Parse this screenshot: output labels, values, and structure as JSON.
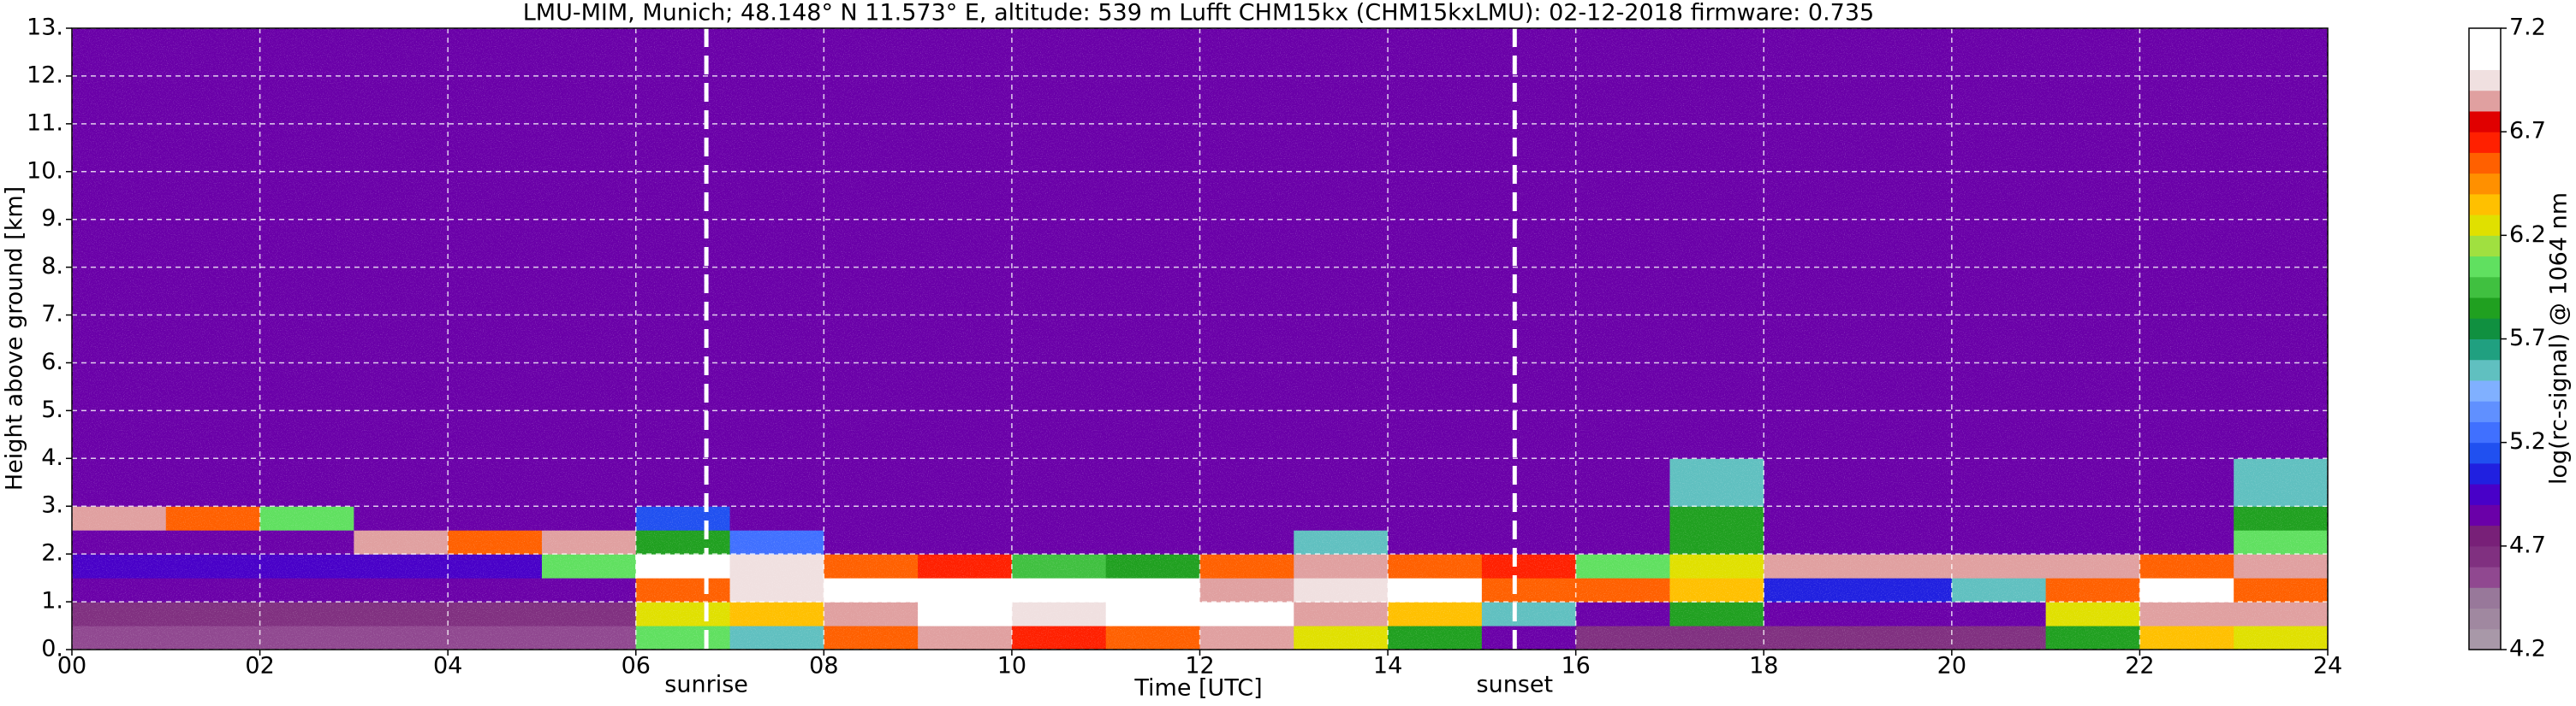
{
  "chart_data": {
    "type": "heatmap",
    "title": "LMU-MIM, Munich; 48.148° N 11.573° E, altitude: 539 m    Lufft CHM15kx (CHM15kxLMU): 02-12-2018    firmware: 0.735",
    "x_label": "Time [UTC]",
    "y_label": "Height above ground [km]",
    "colorbar_label": "log(rc-signal) @ 1064 nm",
    "xbins": [
      0,
      1,
      2,
      3,
      4,
      5,
      6,
      7,
      8,
      9,
      10,
      11,
      12,
      13,
      14,
      15,
      16,
      17,
      18,
      19,
      20,
      21,
      22,
      23,
      24
    ],
    "ybins": [
      0,
      0.5,
      1,
      1.5,
      2,
      2.5,
      3,
      4,
      13
    ],
    "z": [
      [
        4.5,
        4.5,
        4.5,
        4.5,
        4.5,
        4.5,
        6.0,
        5.5,
        6.5,
        6.8,
        6.6,
        6.5,
        6.8,
        6.2,
        5.8,
        4.8,
        4.6,
        4.6,
        4.6,
        4.6,
        4.6,
        5.8,
        6.3,
        6.2
      ],
      [
        4.6,
        4.6,
        4.6,
        4.6,
        4.6,
        4.6,
        6.2,
        6.3,
        6.8,
        7.0,
        6.9,
        7.0,
        7.0,
        6.8,
        6.3,
        5.5,
        4.8,
        5.8,
        4.8,
        4.8,
        4.8,
        6.2,
        6.8,
        6.8
      ],
      [
        4.8,
        4.8,
        4.8,
        4.8,
        4.8,
        4.8,
        6.5,
        6.9,
        7.0,
        7.1,
        7.1,
        7.1,
        6.8,
        6.9,
        7.0,
        6.5,
        6.5,
        6.3,
        5.0,
        5.0,
        5.5,
        6.5,
        7.0,
        6.5
      ],
      [
        4.9,
        4.9,
        4.9,
        4.9,
        4.9,
        6.0,
        7.0,
        6.9,
        6.5,
        6.6,
        5.9,
        5.8,
        6.5,
        6.8,
        6.5,
        6.6,
        6.0,
        6.2,
        6.8,
        6.8,
        6.8,
        6.8,
        6.5,
        6.8
      ],
      [
        4.8,
        4.8,
        4.8,
        6.8,
        6.5,
        6.8,
        5.8,
        5.2,
        4.8,
        4.8,
        4.8,
        4.8,
        4.8,
        5.5,
        4.8,
        4.8,
        4.8,
        5.8,
        4.8,
        4.8,
        4.8,
        4.8,
        4.8,
        6.0
      ],
      [
        6.8,
        6.5,
        6.0,
        4.8,
        4.8,
        4.8,
        5.1,
        4.8,
        4.8,
        4.8,
        4.8,
        4.8,
        4.8,
        4.8,
        4.8,
        4.8,
        4.8,
        5.8,
        4.8,
        4.8,
        4.8,
        4.8,
        4.8,
        5.8
      ],
      [
        4.8,
        4.8,
        4.8,
        4.8,
        4.8,
        4.8,
        4.8,
        4.8,
        4.8,
        4.8,
        4.8,
        4.8,
        4.8,
        4.8,
        4.8,
        4.8,
        4.8,
        5.5,
        4.8,
        4.8,
        4.8,
        4.8,
        4.8,
        5.5
      ],
      [
        4.8,
        4.8,
        4.8,
        4.8,
        4.8,
        4.8,
        4.8,
        4.8,
        4.8,
        4.8,
        4.8,
        4.8,
        4.8,
        4.8,
        4.8,
        4.8,
        4.8,
        4.8,
        4.8,
        4.8,
        4.8,
        4.8,
        4.8,
        4.8
      ]
    ],
    "xlim": [
      0,
      24
    ],
    "xticks": [
      {
        "value": 0,
        "label": "00"
      },
      {
        "value": 2,
        "label": "02"
      },
      {
        "value": 4,
        "label": "04"
      },
      {
        "value": 6,
        "label": "06"
      },
      {
        "value": 8,
        "label": "08"
      },
      {
        "value": 10,
        "label": "10"
      },
      {
        "value": 12,
        "label": "12"
      },
      {
        "value": 14,
        "label": "14"
      },
      {
        "value": 16,
        "label": "16"
      },
      {
        "value": 18,
        "label": "18"
      },
      {
        "value": 20,
        "label": "20"
      },
      {
        "value": 22,
        "label": "22"
      },
      {
        "value": 24,
        "label": "24"
      }
    ],
    "ylim": [
      0,
      13
    ],
    "yticks": [
      {
        "value": 0,
        "label": "0."
      },
      {
        "value": 1,
        "label": "1."
      },
      {
        "value": 2,
        "label": "2."
      },
      {
        "value": 3,
        "label": "3."
      },
      {
        "value": 4,
        "label": "4."
      },
      {
        "value": 5,
        "label": "5."
      },
      {
        "value": 6,
        "label": "6."
      },
      {
        "value": 7,
        "label": "7."
      },
      {
        "value": 8,
        "label": "8."
      },
      {
        "value": 9,
        "label": "9."
      },
      {
        "value": 10,
        "label": "10."
      },
      {
        "value": 11,
        "label": "11."
      },
      {
        "value": 12,
        "label": "12."
      },
      {
        "value": 13,
        "label": "13."
      }
    ],
    "clim": [
      4.2,
      7.2
    ],
    "cticks": [
      4.2,
      4.7,
      5.2,
      5.7,
      6.2,
      6.7,
      7.2
    ],
    "colormap": [
      "#a898a8",
      "#a088a0",
      "#98789a",
      "#904890",
      "#803080",
      "#782078",
      "#6a00a8",
      "#4800c8",
      "#2020e0",
      "#2050f0",
      "#4070ff",
      "#6090ff",
      "#80b0ff",
      "#60c0c0",
      "#20a080",
      "#109040",
      "#20a020",
      "#40c040",
      "#60e060",
      "#a0e040",
      "#e0e000",
      "#ffc000",
      "#ff9000",
      "#ff6000",
      "#ff2000",
      "#e00000",
      "#e0a0a0",
      "#f0e0e0",
      "#ffffff",
      "#ffffff"
    ],
    "grid": true,
    "annotations": [
      {
        "text": "sunrise",
        "x": 6.75
      },
      {
        "text": "sunset",
        "x": 15.35
      }
    ]
  }
}
